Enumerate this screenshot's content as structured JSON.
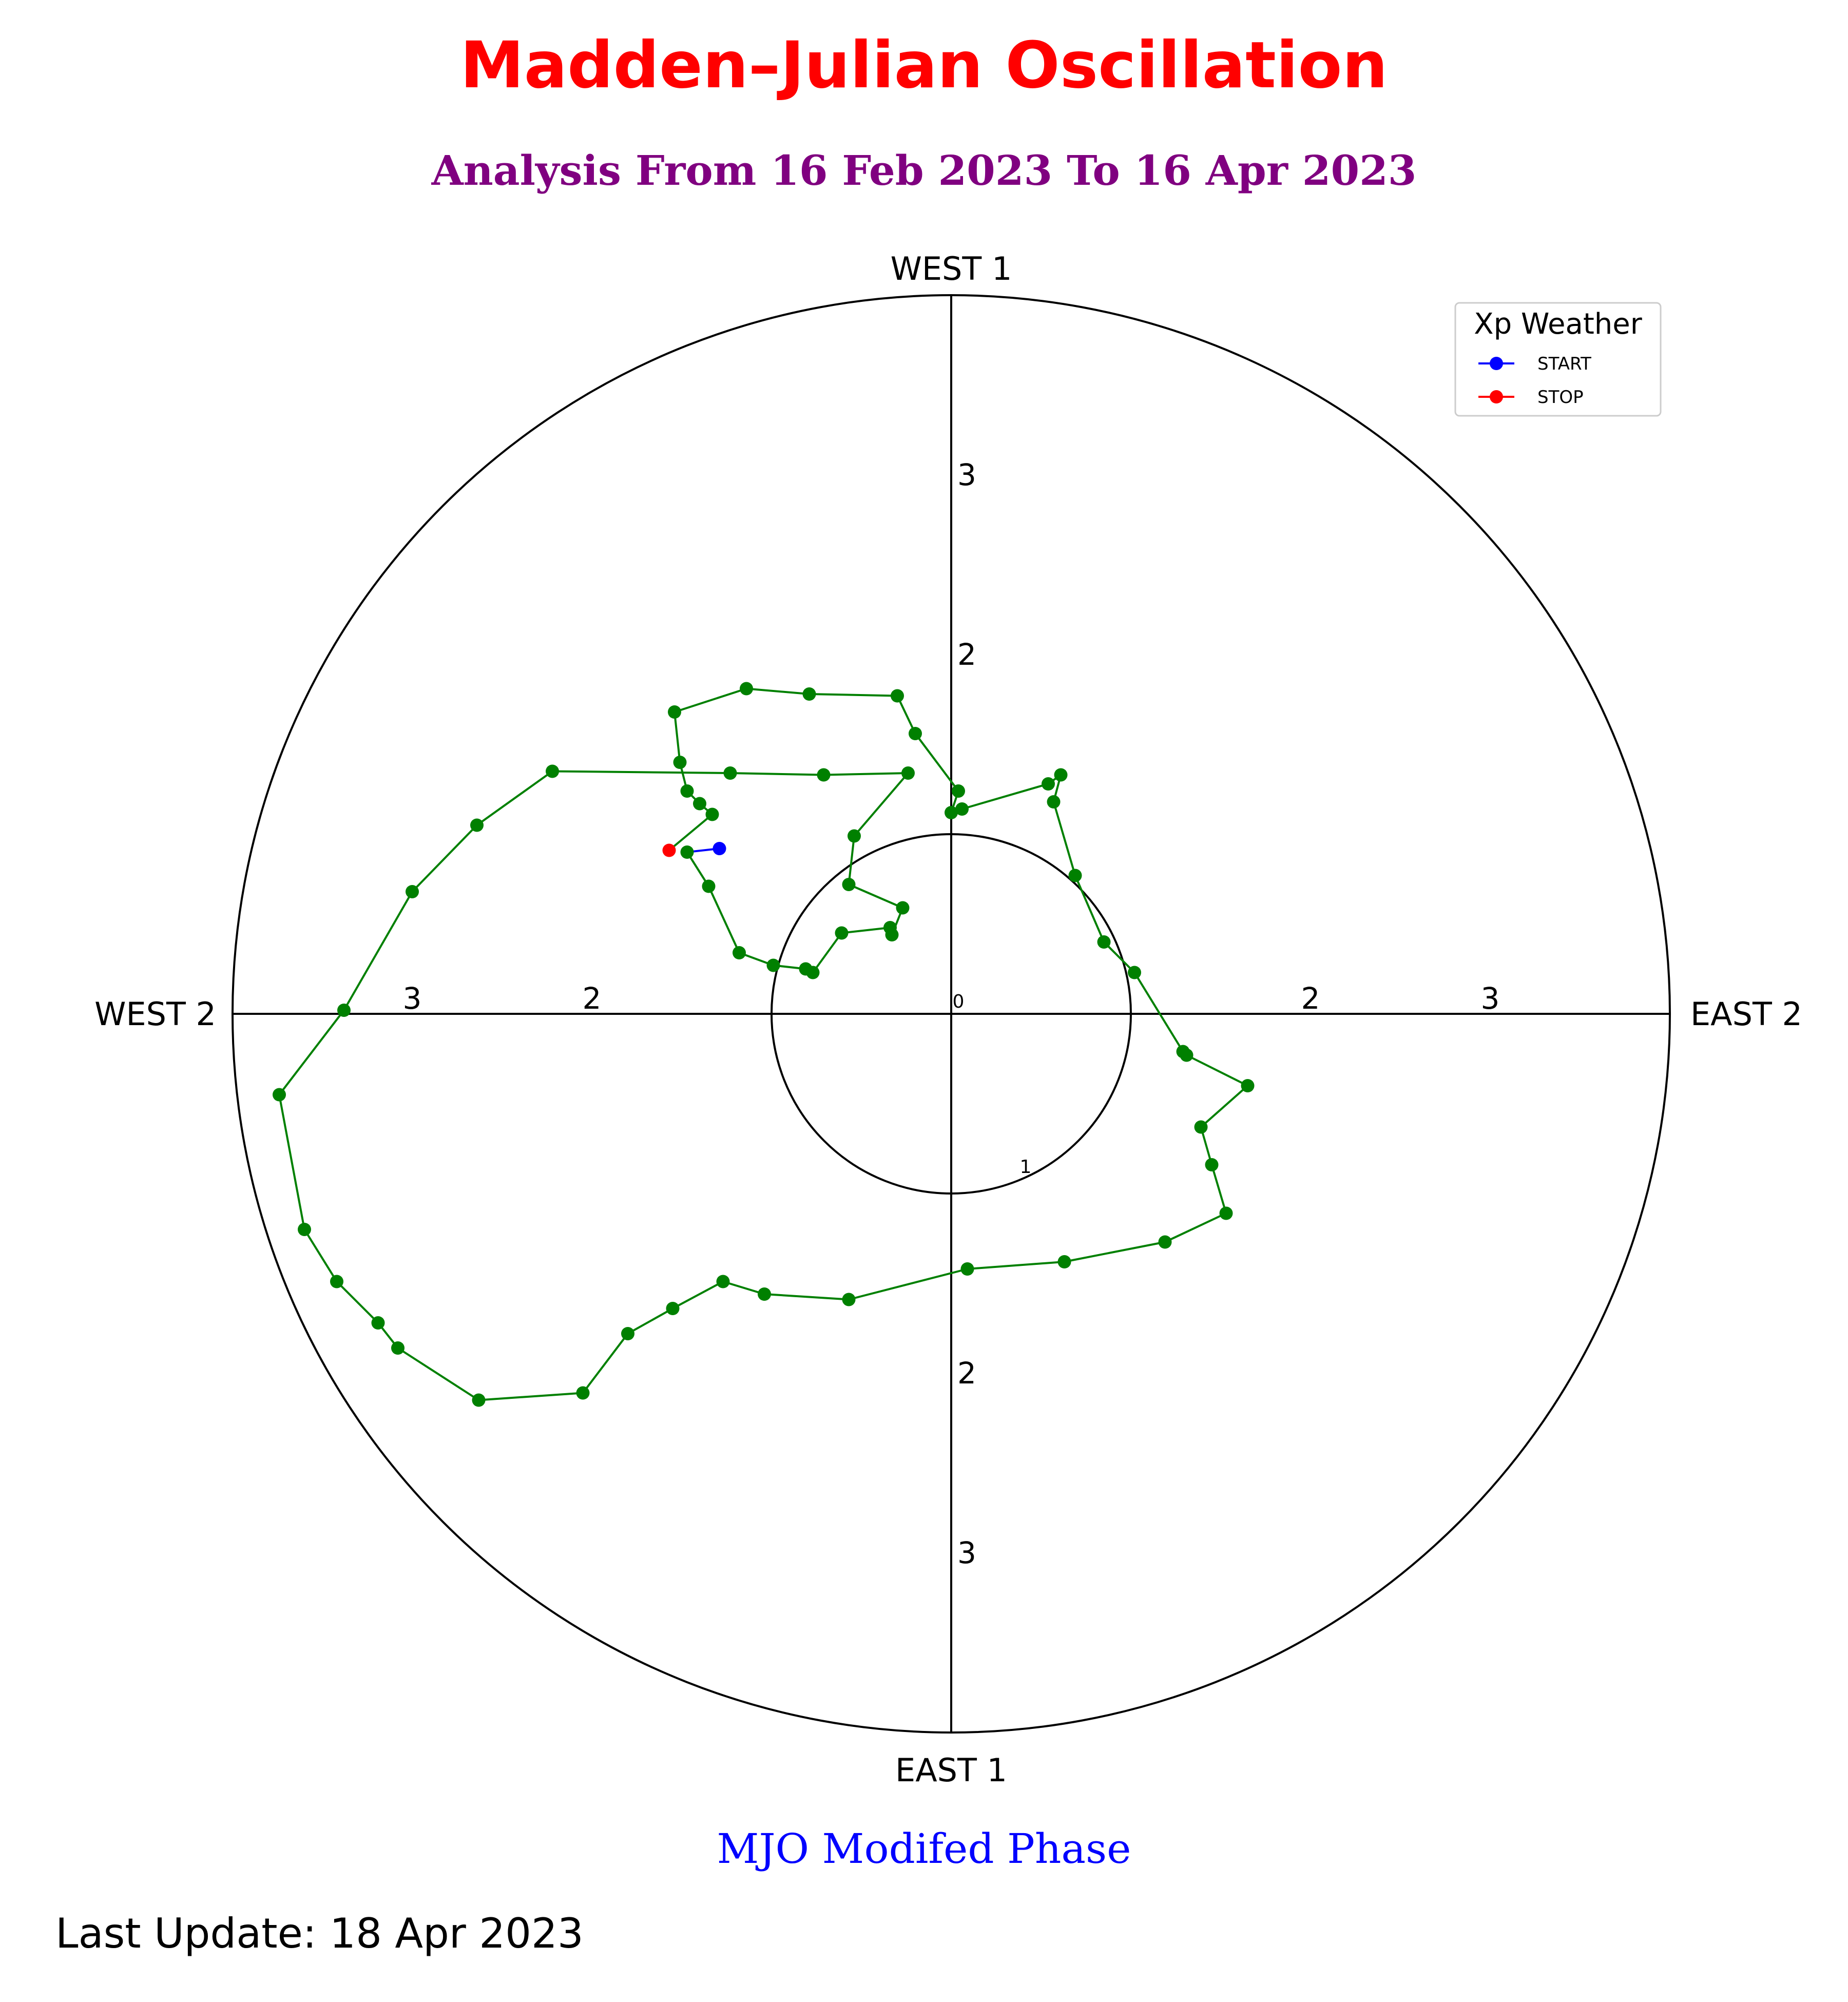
{
  "title": "Madden–Julian Oscillation",
  "subtitle": "Analysis From 16 Feb 2023 To 16 Apr 2023",
  "xlabel": "MJO Modifed Phase",
  "footer": "Last Update: 18 Apr 2023",
  "colors": {
    "title": "#ff0000",
    "subtitle": "#800080",
    "xlabel": "#0000ff",
    "track": "#008000",
    "start": "#0000ff",
    "stop": "#ff0000",
    "axes": "#000000"
  },
  "chart_data": {
    "type": "scatter",
    "subtype": "polar phase diagram with connected track",
    "direction_labels": {
      "top": "WEST 1",
      "bottom": "EAST 1",
      "left": "WEST 2",
      "right": "EAST 2"
    },
    "radial_ticks": {
      "up": [
        "2",
        "3"
      ],
      "down": [
        "2",
        "3"
      ],
      "left": [
        "2",
        "3"
      ],
      "right": [
        "2",
        "3"
      ],
      "origin": "0",
      "inner_circle": "1"
    },
    "axis_range": [
      -4,
      4
    ],
    "inner_circle_radius": 1,
    "outer_circle_radius": 4,
    "legend": {
      "title": "Xp Weather",
      "placement": "top-right",
      "entries": [
        {
          "label": "START",
          "color": "#0000ff"
        },
        {
          "label": "STOP",
          "color": "#ff0000"
        }
      ]
    },
    "points": [
      [
        -1.29,
        0.92
      ],
      [
        -1.47,
        0.9
      ],
      [
        -1.35,
        0.71
      ],
      [
        -1.18,
        0.34
      ],
      [
        -0.99,
        0.27
      ],
      [
        -0.81,
        0.25
      ],
      [
        -0.77,
        0.23
      ],
      [
        -0.61,
        0.45
      ],
      [
        -0.34,
        0.48
      ],
      [
        -0.33,
        0.44
      ],
      [
        -0.27,
        0.59
      ],
      [
        -0.57,
        0.72
      ],
      [
        -0.54,
        0.99
      ],
      [
        -0.24,
        1.34
      ],
      [
        -0.71,
        1.33
      ],
      [
        -1.23,
        1.34
      ],
      [
        -2.22,
        1.35
      ],
      [
        -2.64,
        1.05
      ],
      [
        -3.0,
        0.68
      ],
      [
        -3.38,
        0.02
      ],
      [
        -3.74,
        -0.45
      ],
      [
        -3.6,
        -1.2
      ],
      [
        -3.42,
        -1.49
      ],
      [
        -3.19,
        -1.72
      ],
      [
        -3.08,
        -1.86
      ],
      [
        -2.63,
        -2.15
      ],
      [
        -2.05,
        -2.11
      ],
      [
        -1.8,
        -1.78
      ],
      [
        -1.55,
        -1.64
      ],
      [
        -1.27,
        -1.49
      ],
      [
        -1.04,
        -1.56
      ],
      [
        -0.57,
        -1.59
      ],
      [
        0.09,
        -1.42
      ],
      [
        0.63,
        -1.38
      ],
      [
        1.19,
        -1.27
      ],
      [
        1.53,
        -1.11
      ],
      [
        1.45,
        -0.84
      ],
      [
        1.39,
        -0.63
      ],
      [
        1.65,
        -0.4
      ],
      [
        1.31,
        -0.23
      ],
      [
        1.29,
        -0.21
      ],
      [
        1.02,
        0.23
      ],
      [
        0.85,
        0.4
      ],
      [
        0.69,
        0.77
      ],
      [
        0.57,
        1.18
      ],
      [
        0.61,
        1.33
      ],
      [
        0.54,
        1.28
      ],
      [
        0.06,
        1.14
      ],
      [
        0.0,
        1.12
      ],
      [
        0.04,
        1.24
      ],
      [
        -0.2,
        1.56
      ],
      [
        -0.3,
        1.77
      ],
      [
        -0.79,
        1.78
      ],
      [
        -1.14,
        1.81
      ],
      [
        -1.54,
        1.68
      ],
      [
        -1.51,
        1.4
      ],
      [
        -1.47,
        1.24
      ],
      [
        -1.4,
        1.17
      ],
      [
        -1.33,
        1.11
      ],
      [
        -1.57,
        0.91
      ]
    ],
    "start_index": 0,
    "stop_index": 59
  }
}
